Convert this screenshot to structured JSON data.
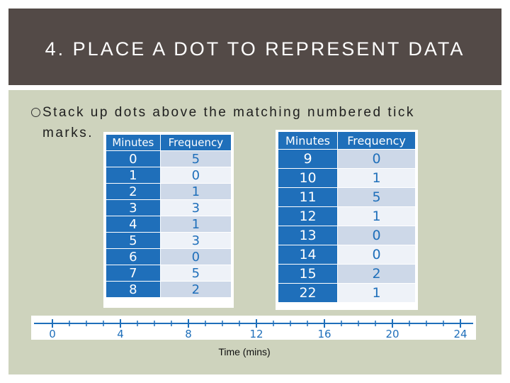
{
  "slide": {
    "title": "4. PLACE A DOT TO REPRESENT DATA",
    "bullet": "Stack up dots above the matching numbered tick marks."
  },
  "table_left": {
    "headers": [
      "Minutes",
      "Frequency"
    ],
    "rows": [
      {
        "minutes": "0",
        "frequency": "5"
      },
      {
        "minutes": "1",
        "frequency": "0"
      },
      {
        "minutes": "2",
        "frequency": "1"
      },
      {
        "minutes": "3",
        "frequency": "3"
      },
      {
        "minutes": "4",
        "frequency": "1"
      },
      {
        "minutes": "5",
        "frequency": "3"
      },
      {
        "minutes": "6",
        "frequency": "0"
      },
      {
        "minutes": "7",
        "frequency": "5"
      },
      {
        "minutes": "8",
        "frequency": "2"
      }
    ]
  },
  "table_right": {
    "headers": [
      "Minutes",
      "Frequency"
    ],
    "rows": [
      {
        "minutes": "9",
        "frequency": "0"
      },
      {
        "minutes": "10",
        "frequency": "1"
      },
      {
        "minutes": "11",
        "frequency": "5"
      },
      {
        "minutes": "12",
        "frequency": "1"
      },
      {
        "minutes": "13",
        "frequency": "0"
      },
      {
        "minutes": "14",
        "frequency": "0"
      },
      {
        "minutes": "15",
        "frequency": "2"
      },
      {
        "minutes": "22",
        "frequency": "1"
      }
    ]
  },
  "number_line": {
    "min": 0,
    "max": 24,
    "labels": [
      "0",
      "4",
      "8",
      "12",
      "16",
      "20",
      "24"
    ],
    "axis_label": "Time (mins)",
    "color": "#1f6fba"
  },
  "colors": {
    "title_bar": "#534a47",
    "content_bg": "#ced3bd",
    "table_header": "#1f6fba"
  }
}
